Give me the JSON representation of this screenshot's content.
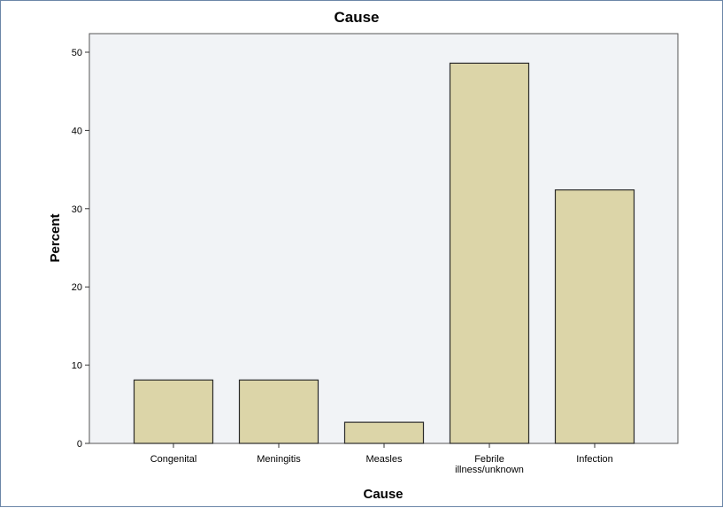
{
  "chart_data": {
    "type": "bar",
    "title": "Cause",
    "xlabel": "Cause",
    "ylabel": "Percent",
    "categories": [
      "Congenital",
      "Meningitis",
      "Measles",
      "Febrile illness/unknown",
      "Infection"
    ],
    "category_lines": [
      [
        "Congenital"
      ],
      [
        "Meningitis"
      ],
      [
        "Measles"
      ],
      [
        "Febrile",
        "illness/unknown"
      ],
      [
        "Infection"
      ]
    ],
    "values": [
      8.1,
      8.1,
      2.7,
      48.6,
      32.4
    ],
    "ylim": [
      0,
      52
    ],
    "yticks": [
      0,
      10,
      20,
      30,
      40,
      50
    ],
    "grid": false,
    "legend": "none",
    "colors": {
      "bar_fill": "#dcd5a8",
      "bar_stroke": "#2b2b2b",
      "plot_bg": "#f1f3f6",
      "frame": "#6b86a8"
    }
  }
}
